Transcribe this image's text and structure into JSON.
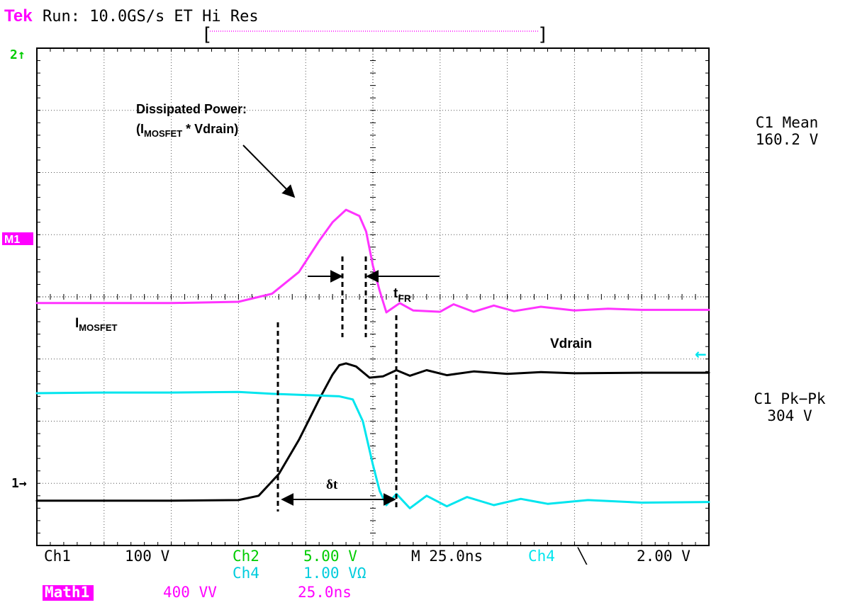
{
  "header": {
    "brand": "Tek",
    "status": "Run: 10.0GS/s ET Hi Res",
    "brand_color": "#ff00ff"
  },
  "markers": {
    "ch2": "2↑",
    "math1": "M1",
    "ch1": "1→",
    "ch4_arrow": "←"
  },
  "measurements": [
    {
      "label": "C1 Mean",
      "value": "160.2 V"
    },
    {
      "label": "C1 Pk−Pk",
      "value": "304 V"
    }
  ],
  "annotations": {
    "power_line1": "Dissipated Power:",
    "power_line2_open": "(I",
    "power_sub": "MOSFET",
    "power_line2_close": " * Vdrain)",
    "imosfet_main": "I",
    "imosfet_sub": "MOSFET",
    "vdrain": "Vdrain",
    "tfr_main": "t",
    "tfr_sub": "FR",
    "dt": "δt"
  },
  "footer": {
    "row1": [
      {
        "text": "Ch1",
        "color": "#000000"
      },
      {
        "text": "100 V",
        "color": "#000000"
      },
      {
        "text": "Ch2",
        "color": "#00cc00"
      },
      {
        "text": "5.00 V",
        "color": "#00cc00"
      },
      {
        "text": "M 25.0ns",
        "color": "#000000"
      },
      {
        "text": "Ch4",
        "color": "#00e5ee"
      },
      {
        "text": "╲",
        "color": "#000000"
      },
      {
        "text": "2.00 V",
        "color": "#000000"
      }
    ],
    "row2": [
      {
        "text": "Ch4",
        "color": "#00ccdd"
      },
      {
        "text": "1.00 VΩ",
        "color": "#00ccdd"
      }
    ],
    "row3": [
      {
        "text": "Math1",
        "color": "#ffffff",
        "bg": "#ff00ff"
      },
      {
        "text": "400 VV",
        "color": "#ff00ff"
      },
      {
        "text": "25.0ns",
        "color": "#ff00ff"
      }
    ]
  },
  "chart_data": {
    "type": "line",
    "grid": true,
    "x_divisions": 10,
    "y_divisions": 8,
    "x_unit": "div",
    "y_unit": "div",
    "series": [
      {
        "name": "Math1",
        "color": "#ff33ff",
        "points": [
          [
            0,
            3.9
          ],
          [
            1,
            3.9
          ],
          [
            2,
            3.9
          ],
          [
            3,
            3.92
          ],
          [
            3.5,
            4.05
          ],
          [
            3.9,
            4.4
          ],
          [
            4.2,
            4.9
          ],
          [
            4.4,
            5.2
          ],
          [
            4.6,
            5.4
          ],
          [
            4.8,
            5.3
          ],
          [
            4.9,
            5.05
          ],
          [
            5.0,
            4.5
          ],
          [
            5.1,
            4.1
          ],
          [
            5.2,
            3.75
          ],
          [
            5.4,
            3.9
          ],
          [
            5.6,
            3.78
          ],
          [
            6.0,
            3.76
          ],
          [
            6.2,
            3.88
          ],
          [
            6.5,
            3.76
          ],
          [
            6.8,
            3.86
          ],
          [
            7.1,
            3.77
          ],
          [
            7.5,
            3.84
          ],
          [
            8.0,
            3.78
          ],
          [
            8.5,
            3.81
          ],
          [
            9.0,
            3.79
          ],
          [
            10,
            3.79
          ]
        ]
      },
      {
        "name": "Ch1",
        "color": "#000000",
        "points": [
          [
            0,
            0.72
          ],
          [
            1,
            0.72
          ],
          [
            2,
            0.72
          ],
          [
            3,
            0.73
          ],
          [
            3.3,
            0.8
          ],
          [
            3.6,
            1.15
          ],
          [
            3.9,
            1.7
          ],
          [
            4.2,
            2.35
          ],
          [
            4.4,
            2.75
          ],
          [
            4.5,
            2.9
          ],
          [
            4.6,
            2.93
          ],
          [
            4.75,
            2.88
          ],
          [
            4.95,
            2.7
          ],
          [
            5.15,
            2.72
          ],
          [
            5.35,
            2.82
          ],
          [
            5.55,
            2.73
          ],
          [
            5.8,
            2.82
          ],
          [
            6.1,
            2.74
          ],
          [
            6.5,
            2.8
          ],
          [
            7,
            2.76
          ],
          [
            7.5,
            2.79
          ],
          [
            8,
            2.77
          ],
          [
            9,
            2.78
          ],
          [
            10,
            2.78
          ]
        ]
      },
      {
        "name": "Ch4",
        "color": "#00e5ee",
        "points": [
          [
            0,
            2.45
          ],
          [
            1,
            2.46
          ],
          [
            2,
            2.46
          ],
          [
            3,
            2.47
          ],
          [
            3.5,
            2.44
          ],
          [
            4.0,
            2.42
          ],
          [
            4.5,
            2.4
          ],
          [
            4.7,
            2.35
          ],
          [
            4.85,
            2.0
          ],
          [
            5.0,
            1.3
          ],
          [
            5.1,
            0.88
          ],
          [
            5.2,
            0.65
          ],
          [
            5.35,
            0.83
          ],
          [
            5.55,
            0.6
          ],
          [
            5.8,
            0.8
          ],
          [
            6.1,
            0.63
          ],
          [
            6.4,
            0.78
          ],
          [
            6.8,
            0.65
          ],
          [
            7.2,
            0.75
          ],
          [
            7.6,
            0.67
          ],
          [
            8.2,
            0.73
          ],
          [
            9,
            0.69
          ],
          [
            10,
            0.7
          ]
        ]
      }
    ]
  }
}
